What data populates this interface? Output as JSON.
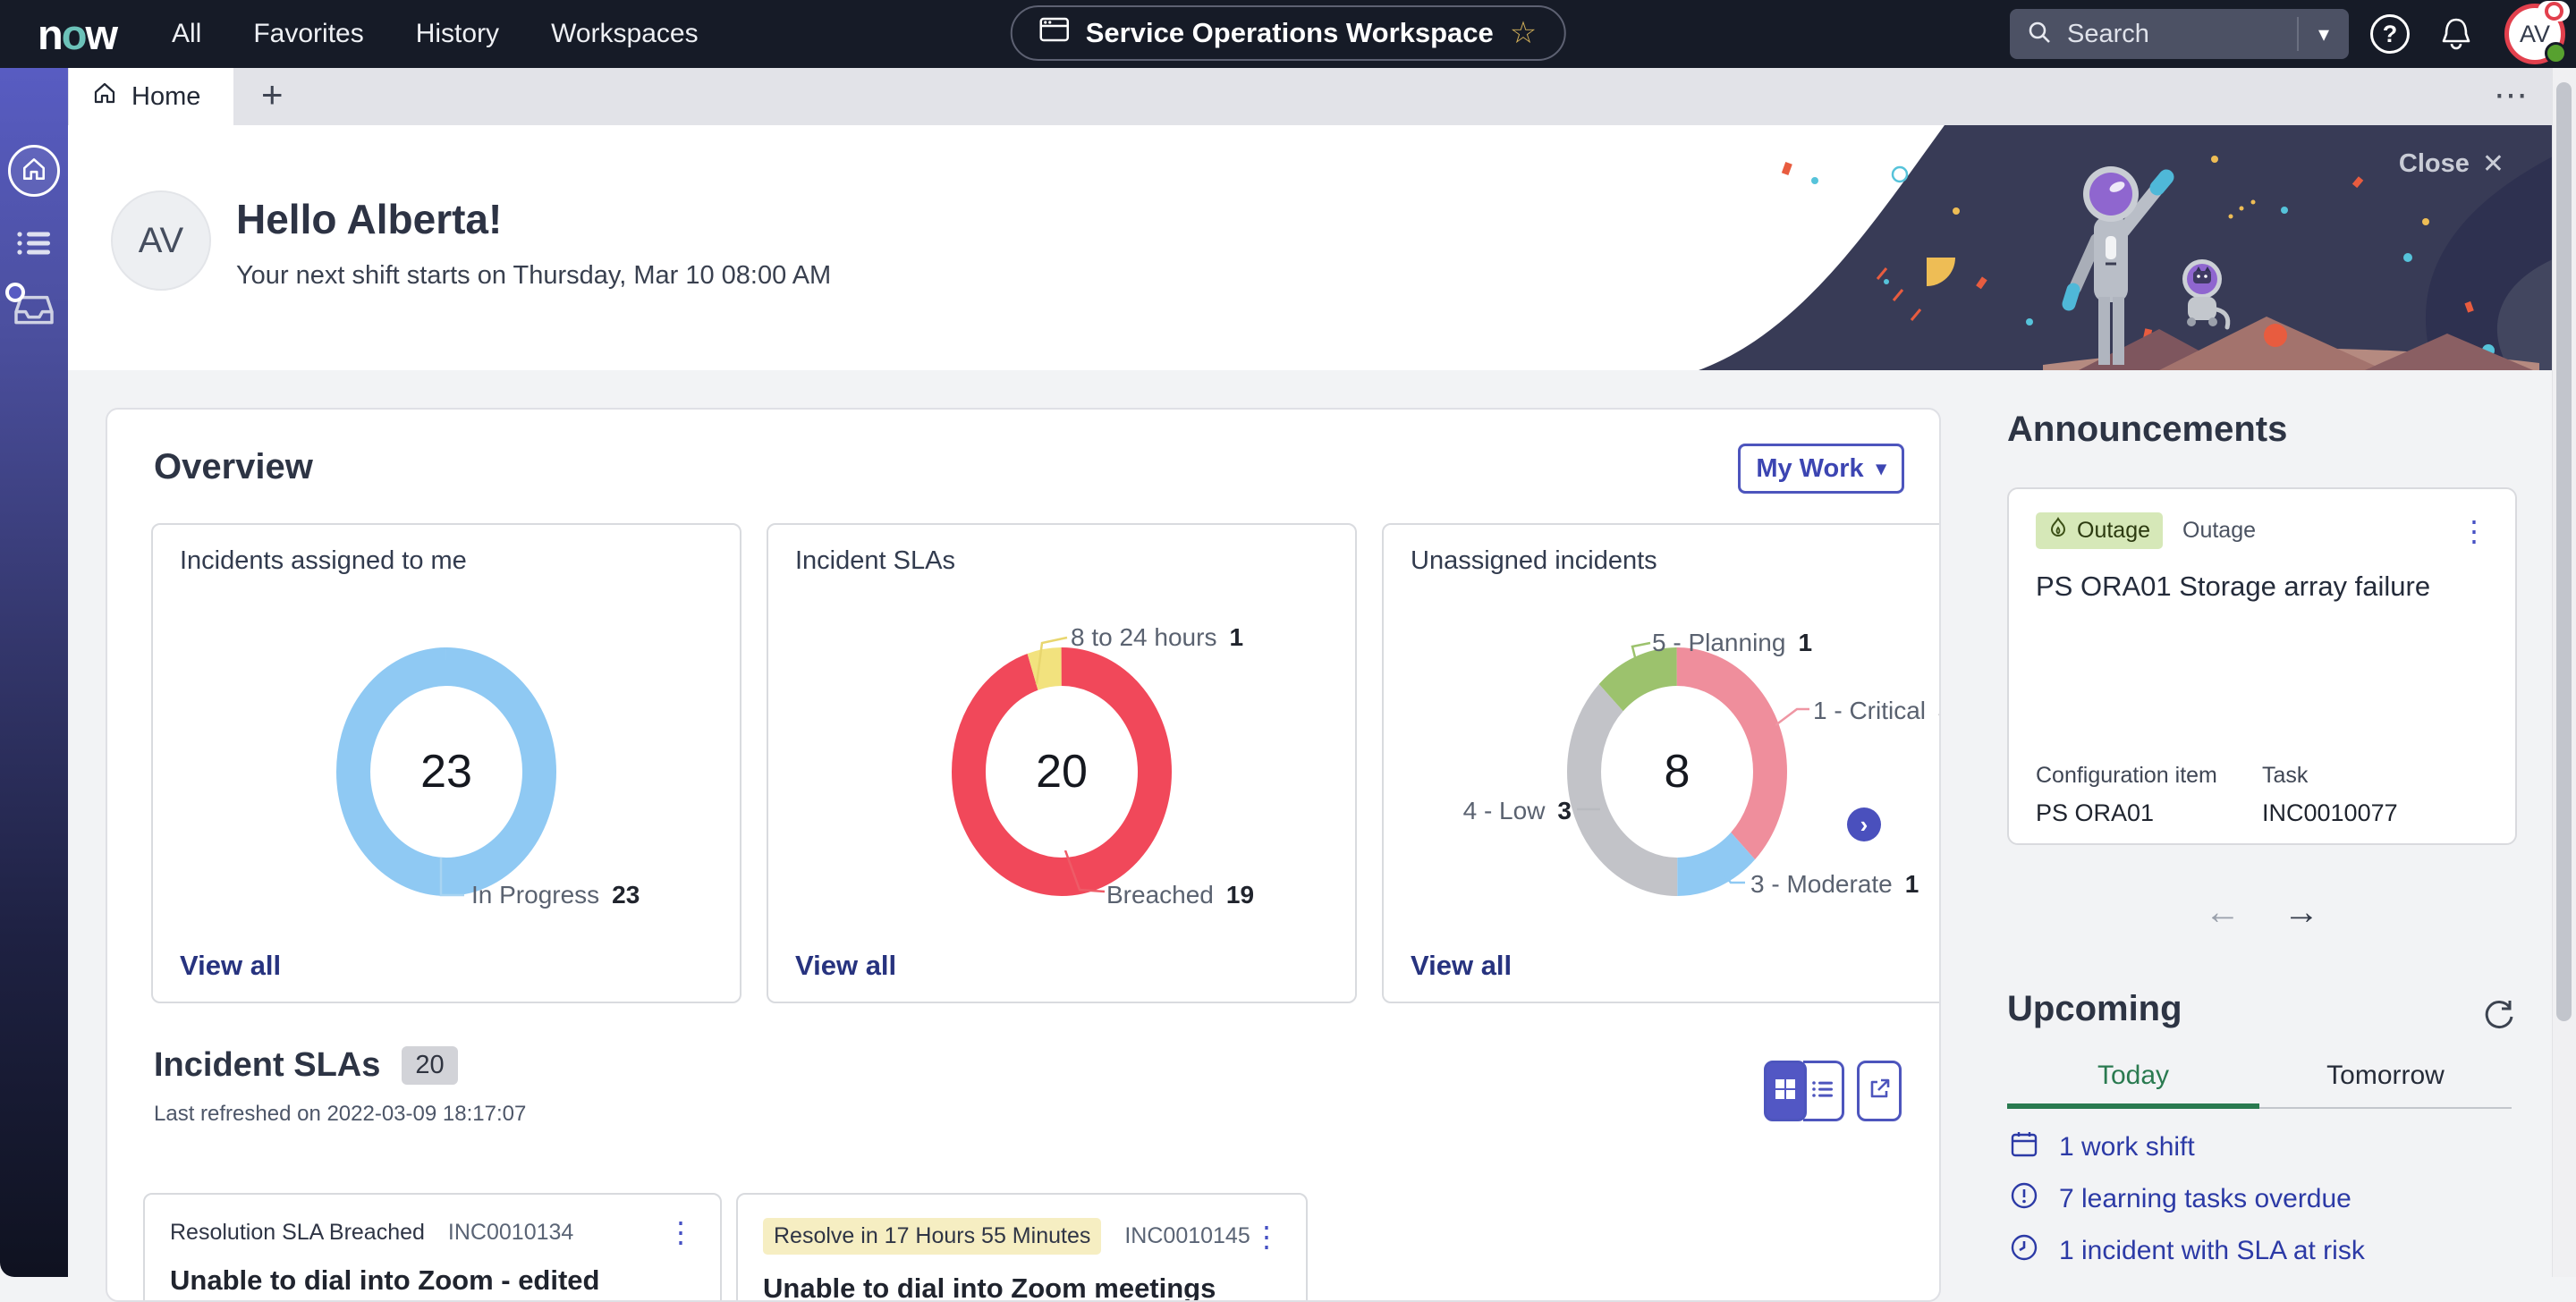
{
  "ui": {
    "kebab_glyph": "⋮",
    "caret_glyph": "▾",
    "plus_glyph": "+",
    "more_glyph": "⋯",
    "close_glyph": "✕",
    "star_glyph": "☆",
    "back_arrow": "←",
    "forward_arrow": "→",
    "question_glyph": "?",
    "next_chevron": "›"
  },
  "nav": {
    "logo_n": "n",
    "logo_o": "o",
    "logo_w": "w",
    "items": [
      {
        "label": "All"
      },
      {
        "label": "Favorites"
      },
      {
        "label": "History"
      },
      {
        "label": "Workspaces"
      }
    ],
    "workspace_pill": "Service Operations Workspace",
    "search_placeholder": "Search",
    "avatar_initials": "AV"
  },
  "tabbar": {
    "home_tab": "Home"
  },
  "hero": {
    "avatar_initials": "AV",
    "greeting": "Hello Alberta!",
    "shift_info": "Your next shift starts on Thursday, Mar 10 08:00 AM",
    "close_label": "Close"
  },
  "overview": {
    "title": "Overview",
    "filter_button": "My Work",
    "view_all_label": "View all"
  },
  "chart_data": [
    {
      "type": "donut",
      "title": "Incidents assigned to me",
      "total": 23,
      "segments": [
        {
          "label": "In Progress",
          "value": 23,
          "color": "#8fc9f3"
        }
      ]
    },
    {
      "type": "donut",
      "title": "Incident SLAs",
      "total": 20,
      "segments": [
        {
          "label": "Breached",
          "value": 19,
          "color": "#f1485a"
        },
        {
          "label": "8 to 24 hours",
          "value": 1,
          "color": "#f2e27e"
        }
      ]
    },
    {
      "type": "donut",
      "title": "Unassigned incidents",
      "total": 8,
      "segments": [
        {
          "label": "1 - Critical",
          "value": 3,
          "color": "#ef8e9c"
        },
        {
          "label": "3 - Moderate",
          "value": 1,
          "color": "#8fc9f3"
        },
        {
          "label": "4 - Low",
          "value": 3,
          "color": "#c2c3c8"
        },
        {
          "label": "5 - Planning",
          "value": 1,
          "color": "#9cc26d"
        }
      ]
    }
  ],
  "sla_section": {
    "title": "Incident SLAs",
    "count_badge": "20",
    "last_refreshed": "Last refreshed on 2022-03-09 18:17:07",
    "cards": [
      {
        "badge": "Resolution SLA Breached",
        "number": "INC0010134",
        "title": "Unable to dial into Zoom - edited"
      },
      {
        "badge": "Resolve in 17 Hours 55 Minutes",
        "number": "INC0010145",
        "title": "Unable to dial into Zoom meetings"
      }
    ]
  },
  "announcements": {
    "title": "Announcements",
    "card": {
      "badge": "Outage",
      "type": "Outage",
      "headline": "PS ORA01 Storage array failure",
      "fields": [
        {
          "label": "Configuration item",
          "value": "PS ORA01"
        },
        {
          "label": "Task",
          "value": "INC0010077"
        }
      ]
    }
  },
  "upcoming": {
    "title": "Upcoming",
    "tabs": [
      {
        "label": "Today"
      },
      {
        "label": "Tomorrow"
      }
    ],
    "active_tab": "Today",
    "items": [
      {
        "icon": "calendar-icon",
        "label": "1 work shift"
      },
      {
        "icon": "alert-circle-icon",
        "label": "7 learning tasks overdue"
      },
      {
        "icon": "clock-icon",
        "label": "1 incident with SLA at risk"
      }
    ]
  },
  "colors": {
    "nav_bg": "#161b27",
    "sidebar_top": "#585cc2",
    "accent_indigo": "#4d55bd",
    "link_navy": "#27337f",
    "upcoming_link": "#2c3aa6",
    "tab_green": "#2a7a50",
    "outage_badge_bg": "#d6e8b8",
    "yellow_badge_bg": "#f6eec2",
    "avatar_ring_red": "#e2404d",
    "presence_green": "#57a12f"
  }
}
